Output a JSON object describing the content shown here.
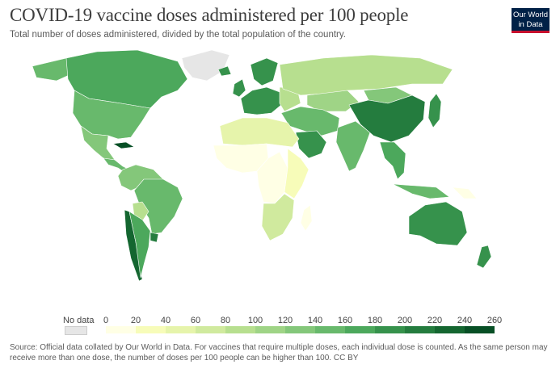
{
  "header": {
    "title": "COVID-19 vaccine doses administered per 100 people",
    "subtitle": "Total number of doses administered, divided by the total population of the country."
  },
  "logo": {
    "line1": "Our World",
    "line2": "in Data"
  },
  "legend": {
    "no_data_label": "No data",
    "no_data_color": "#e6e6e6",
    "ticks": [
      "0",
      "20",
      "40",
      "60",
      "80",
      "100",
      "120",
      "140",
      "160",
      "180",
      "200",
      "220",
      "240",
      "260"
    ],
    "colors": [
      "#ffffe5",
      "#f7fcb9",
      "#e6f4ab",
      "#d0ea9e",
      "#b7df8f",
      "#9fd486",
      "#84c77a",
      "#68b96c",
      "#4ca85c",
      "#36924c",
      "#247c3e",
      "#146630",
      "#074f25"
    ]
  },
  "footer": {
    "source": "Source: Official data collated by Our World in Data. For vaccines that require multiple doses, each individual dose is counted. As the same person may receive more than one dose, the number of doses per 100 people can be higher than 100.",
    "license": "CC BY"
  },
  "regions": [
    {
      "name": "Canada",
      "color": "#4ca85c"
    },
    {
      "name": "Alaska",
      "color": "#68b96c"
    },
    {
      "name": "United States",
      "color": "#68b96c"
    },
    {
      "name": "Greenland",
      "color": "#e6e6e6"
    },
    {
      "name": "Mexico",
      "color": "#84c77a"
    },
    {
      "name": "Central America",
      "color": "#68b96c"
    },
    {
      "name": "Cuba",
      "color": "#074f25"
    },
    {
      "name": "South America North",
      "color": "#84c77a"
    },
    {
      "name": "Brazil",
      "color": "#68b96c"
    },
    {
      "name": "Bolivia",
      "color": "#b7df8f"
    },
    {
      "name": "Chile",
      "color": "#146630"
    },
    {
      "name": "Argentina",
      "color": "#4ca85c"
    },
    {
      "name": "Uruguay",
      "color": "#247c3e"
    },
    {
      "name": "Iceland",
      "color": "#36924c"
    },
    {
      "name": "Scandinavia",
      "color": "#36924c"
    },
    {
      "name": "UK and Ireland",
      "color": "#36924c"
    },
    {
      "name": "Western Europe",
      "color": "#36924c"
    },
    {
      "name": "Eastern Europe",
      "color": "#b7df8f"
    },
    {
      "name": "Russia",
      "color": "#b7df8f"
    },
    {
      "name": "Kazakhstan",
      "color": "#9fd486"
    },
    {
      "name": "Middle East",
      "color": "#68b96c"
    },
    {
      "name": "Saudi Arabia",
      "color": "#36924c"
    },
    {
      "name": "North Africa",
      "color": "#e6f4ab"
    },
    {
      "name": "West Africa",
      "color": "#ffffe5"
    },
    {
      "name": "Central Africa",
      "color": "#ffffe5"
    },
    {
      "name": "East Africa",
      "color": "#f7fcb9"
    },
    {
      "name": "Southern Africa",
      "color": "#d0ea9e"
    },
    {
      "name": "Madagascar",
      "color": "#ffffe5"
    },
    {
      "name": "India",
      "color": "#68b96c"
    },
    {
      "name": "China",
      "color": "#247c3e"
    },
    {
      "name": "Mongolia",
      "color": "#84c77a"
    },
    {
      "name": "Japan",
      "color": "#36924c"
    },
    {
      "name": "Southeast Asia",
      "color": "#4ca85c"
    },
    {
      "name": "Indonesia",
      "color": "#68b96c"
    },
    {
      "name": "Papua New Guinea",
      "color": "#ffffe5"
    },
    {
      "name": "Australia",
      "color": "#36924c"
    },
    {
      "name": "New Zealand",
      "color": "#36924c"
    }
  ]
}
